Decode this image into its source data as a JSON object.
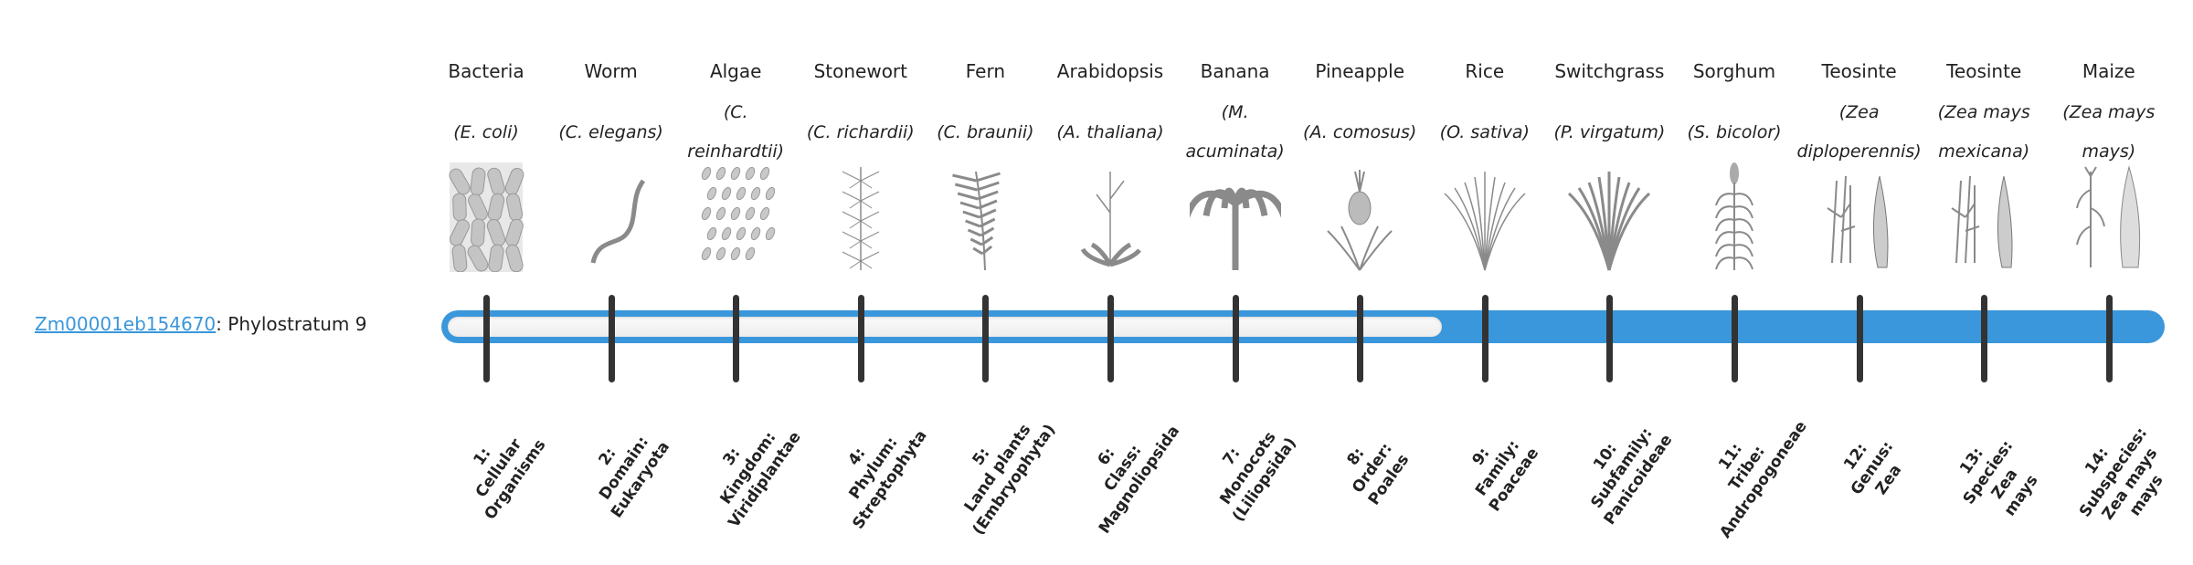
{
  "gene": {
    "id": "Zm00001eb154670",
    "suffix": ": Phylostratum 9",
    "phylostratum": 9
  },
  "colors": {
    "bar": "#3a97db",
    "tick": "#333333",
    "link": "#3a97db"
  },
  "organisms": [
    {
      "name": "Bacteria",
      "species": "(E. coli)",
      "icon": "bacteria-icon",
      "stratum": [
        "1:",
        "Cellular",
        "Organisms"
      ]
    },
    {
      "name": "Worm",
      "species": "(C. elegans)",
      "icon": "worm-icon",
      "stratum": [
        "2:",
        "Domain:",
        "Eukaryota"
      ]
    },
    {
      "name": "Algae",
      "species": "(C. reinhardtii)",
      "icon": "algae-icon",
      "stratum": [
        "3:",
        "Kingdom:",
        "Viridiplantae"
      ]
    },
    {
      "name": "Stonewort",
      "species": "(C. richardii)",
      "icon": "stonewort-icon",
      "stratum": [
        "4:",
        "Phylum:",
        "Streptophyta"
      ]
    },
    {
      "name": "Fern",
      "species": "(C. braunii)",
      "icon": "fern-icon",
      "stratum": [
        "5:",
        "Land plants",
        "(Embryophyta)"
      ]
    },
    {
      "name": "Arabidopsis",
      "species": "(A. thaliana)",
      "icon": "arabidopsis-icon",
      "stratum": [
        "6:",
        "Class:",
        "Magnoliopsida"
      ]
    },
    {
      "name": "Banana",
      "species": "(M. acuminata)",
      "icon": "banana-icon",
      "stratum": [
        "7:",
        "Monocots",
        "(Liliopsida)"
      ]
    },
    {
      "name": "Pineapple",
      "species": "(A. comosus)",
      "icon": "pineapple-icon",
      "stratum": [
        "8:",
        "Order:",
        "Poales"
      ]
    },
    {
      "name": "Rice",
      "species": "(O. sativa)",
      "icon": "rice-icon",
      "stratum": [
        "9:",
        "Family:",
        "Poaceae"
      ]
    },
    {
      "name": "Switchgrass",
      "species": "(P. virgatum)",
      "icon": "switchgrass-icon",
      "stratum": [
        "10:",
        "Subfamily:",
        "Panicoideae"
      ]
    },
    {
      "name": "Sorghum",
      "species": "(S. bicolor)",
      "icon": "sorghum-icon",
      "stratum": [
        "11:",
        "Tribe:",
        "Andropogoneae"
      ]
    },
    {
      "name": "Teosinte",
      "species": "(Zea diploperennis)",
      "icon": "teosinte-icon",
      "stratum": [
        "12:",
        "Genus:",
        "Zea"
      ]
    },
    {
      "name": "Teosinte",
      "species": "(Zea mays mexicana)",
      "icon": "teosinte-icon",
      "stratum": [
        "13:",
        "Species:",
        "Zea",
        "mays"
      ]
    },
    {
      "name": "Maize",
      "species": "(Zea mays mays)",
      "icon": "maize-icon",
      "stratum": [
        "14:",
        "Subspecies:",
        "Zea mays",
        "mays"
      ]
    }
  ]
}
